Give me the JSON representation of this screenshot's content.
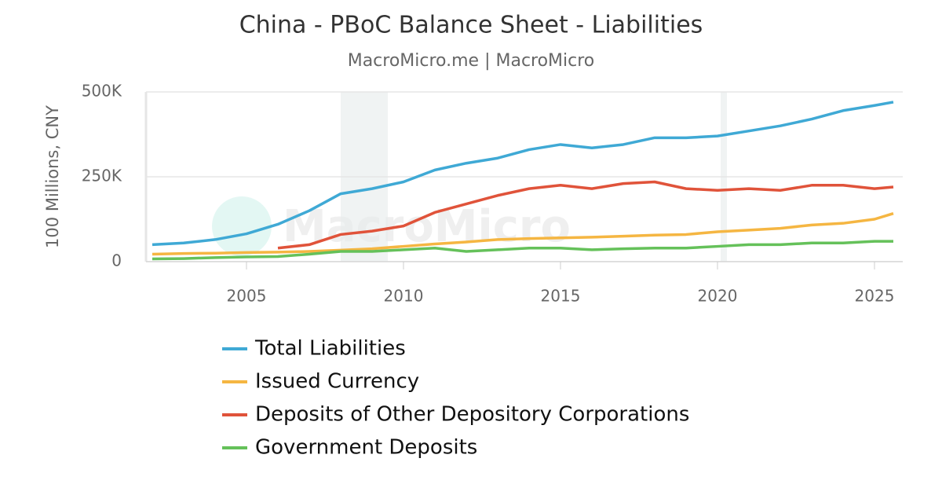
{
  "chart_data": {
    "type": "line",
    "title": "China - PBoC Balance Sheet - Liabilities",
    "subtitle": "MacroMicro.me | MacroMicro",
    "y_label": "100 Millions, CNY",
    "watermark": "MacroMicro",
    "x": [
      2002,
      2003,
      2004,
      2005,
      2006,
      2007,
      2008,
      2009,
      2010,
      2011,
      2012,
      2013,
      2014,
      2015,
      2016,
      2017,
      2018,
      2019,
      2020,
      2021,
      2022,
      2023,
      2024,
      2025,
      2025.6
    ],
    "series": [
      {
        "name": "Total Liabilities",
        "color": "#3fa9d5",
        "values": [
          50000,
          55000,
          65000,
          82000,
          110000,
          150000,
          200000,
          215000,
          235000,
          270000,
          290000,
          305000,
          330000,
          345000,
          335000,
          345000,
          365000,
          365000,
          370000,
          385000,
          400000,
          420000,
          445000,
          460000,
          470000
        ]
      },
      {
        "name": "Issued Currency",
        "color": "#f5b642",
        "values": [
          22000,
          24000,
          25000,
          27000,
          28000,
          30000,
          34000,
          38000,
          45000,
          52000,
          58000,
          65000,
          68000,
          70000,
          72000,
          75000,
          78000,
          80000,
          88000,
          93000,
          98000,
          108000,
          113000,
          125000,
          142000
        ]
      },
      {
        "name": "Deposits of Other Depository Corporations",
        "color": "#e0533a",
        "values": [
          null,
          null,
          null,
          null,
          40000,
          50000,
          80000,
          90000,
          105000,
          145000,
          170000,
          195000,
          215000,
          225000,
          215000,
          230000,
          235000,
          215000,
          210000,
          215000,
          210000,
          225000,
          225000,
          215000,
          220000
        ]
      },
      {
        "name": "Government Deposits",
        "color": "#65c15a",
        "values": [
          8000,
          9000,
          12000,
          14000,
          15000,
          22000,
          30000,
          30000,
          35000,
          40000,
          30000,
          35000,
          40000,
          40000,
          35000,
          38000,
          40000,
          40000,
          45000,
          50000,
          50000,
          55000,
          55000,
          60000,
          60000
        ]
      }
    ],
    "shaded_periods": [
      [
        2008.0,
        2009.5
      ],
      [
        2020.1,
        2020.3
      ]
    ],
    "xlim": [
      2001.8,
      2025.9
    ],
    "xticks": [
      2005,
      2010,
      2015,
      2020,
      2025
    ],
    "ylim": [
      0,
      500000
    ],
    "yticks": [
      0,
      {
        "value": 250000,
        "label": "250K"
      },
      {
        "value": 500000,
        "label": "500K"
      }
    ],
    "grid": true,
    "legend": "bottom"
  }
}
